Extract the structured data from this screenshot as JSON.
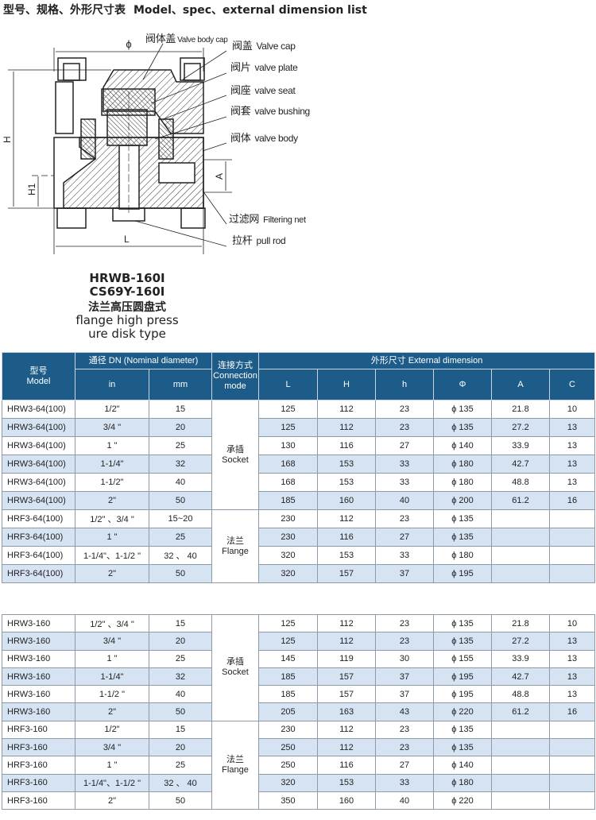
{
  "title": {
    "cn": "型号、规格、外形尺寸表",
    "en": "Model、spec、external dimension list"
  },
  "drawing": {
    "dim_labels": {
      "phi": "ϕ",
      "H": "H",
      "H1": "H1",
      "L": "L",
      "A": "A"
    },
    "parts": [
      {
        "cn": "阀体盖",
        "en": "Valve body cap"
      },
      {
        "cn": "阀盖",
        "en": "Valve cap"
      },
      {
        "cn": "阀片",
        "en": "valve plate"
      },
      {
        "cn": "阀座",
        "en": "valve seat"
      },
      {
        "cn": "阀套",
        "en": "valve bushing"
      },
      {
        "cn": "阀体",
        "en": "valve body"
      },
      {
        "cn": "过滤网",
        "en": "Filtering net"
      },
      {
        "cn": "拉杆",
        "en": "pull rod"
      }
    ],
    "caption": {
      "model1": "HRWB-160I",
      "model2": "CS69Y-160I",
      "cn": "法兰高压圆盘式",
      "en1": "flange high press",
      "en2": "ure disk type"
    }
  },
  "table_header": {
    "model": {
      "cn": "型号",
      "en": "Model"
    },
    "dn": "通径 DN  (Nominal diameter)",
    "in": "in",
    "mm": "mm",
    "conn": {
      "cn": "连接方式",
      "en1": "Connection",
      "en2": "mode"
    },
    "ext": "外形尺寸 External dimension",
    "cols": [
      "L",
      "H",
      "h",
      "Φ",
      "A",
      "C"
    ]
  },
  "colors": {
    "header_bg": "#1d5c89",
    "alt_row": "#d6e3f3"
  },
  "tables": [
    {
      "groups": [
        {
          "conn_cn": "承插",
          "conn_en": "Socket",
          "rows": [
            [
              "HRW3-64(100)",
              "1/2\"",
              "15",
              "125",
              "112",
              "23",
              "ϕ 135",
              "21.8",
              "10"
            ],
            [
              "HRW3-64(100)",
              "3/4 \"",
              "20",
              "125",
              "112",
              "23",
              "ϕ 135",
              "27.2",
              "13"
            ],
            [
              "HRW3-64(100)",
              "1 \"",
              "25",
              "130",
              "116",
              "27",
              "ϕ 140",
              "33.9",
              "13"
            ],
            [
              "HRW3-64(100)",
              "1-1/4\"",
              "32",
              "168",
              "153",
              "33",
              "ϕ 180",
              "42.7",
              "13"
            ],
            [
              "HRW3-64(100)",
              "1-1/2\"",
              "40",
              "168",
              "153",
              "33",
              "ϕ 180",
              "48.8",
              "13"
            ],
            [
              "HRW3-64(100)",
              "2\"",
              "50",
              "185",
              "160",
              "40",
              "ϕ 200",
              "61.2",
              "16"
            ]
          ]
        },
        {
          "conn_cn": "法兰",
          "conn_en": "Flange",
          "rows": [
            [
              "HRF3-64(100)",
              "1/2\" 、3/4 \"",
              "15~20",
              "230",
              "112",
              "23",
              "ϕ 135",
              "",
              ""
            ],
            [
              "HRF3-64(100)",
              "1 \"",
              "25",
              "230",
              "116",
              "27",
              "ϕ 135",
              "",
              ""
            ],
            [
              "HRF3-64(100)",
              "1-1/4\"、1-1/2 \"",
              "32 、 40",
              "320",
              "153",
              "33",
              "ϕ 180",
              "",
              ""
            ],
            [
              "HRF3-64(100)",
              "2\"",
              "50",
              "320",
              "157",
              "37",
              "ϕ 195",
              "",
              ""
            ]
          ]
        }
      ]
    },
    {
      "groups": [
        {
          "conn_cn": "承插",
          "conn_en": "Socket",
          "rows": [
            [
              "HRW3-160",
              "1/2\" 、3/4 \"",
              "15",
              "125",
              "112",
              "23",
              "ϕ 135",
              "21.8",
              "10"
            ],
            [
              "HRW3-160",
              "3/4 \"",
              "20",
              "125",
              "112",
              "23",
              "ϕ 135",
              "27.2",
              "13"
            ],
            [
              "HRW3-160",
              "1 \"",
              "25",
              "145",
              "119",
              "30",
              "ϕ 155",
              "33.9",
              "13"
            ],
            [
              "HRW3-160",
              "1-1/4\"",
              "32",
              "185",
              "157",
              "37",
              "ϕ 195",
              "42.7",
              "13"
            ],
            [
              "HRW3-160",
              "1-1/2 \"",
              "40",
              "185",
              "157",
              "37",
              "ϕ 195",
              "48.8",
              "13"
            ],
            [
              "HRW3-160",
              "2\"",
              "50",
              "205",
              "163",
              "43",
              "ϕ 220",
              "61.2",
              "16"
            ]
          ]
        },
        {
          "conn_cn": "法兰",
          "conn_en": "Flange",
          "rows": [
            [
              "HRF3-160",
              "1/2\"",
              "15",
              "230",
              "112",
              "23",
              "ϕ 135",
              "",
              ""
            ],
            [
              "HRF3-160",
              "3/4 \"",
              "20",
              "250",
              "112",
              "23",
              "ϕ 135",
              "",
              ""
            ],
            [
              "HRF3-160",
              "1 \"",
              "25",
              "250",
              "116",
              "27",
              "ϕ 140",
              "",
              ""
            ],
            [
              "HRF3-160",
              "1-1/4\"、1-1/2 \"",
              "32 、 40",
              "320",
              "153",
              "33",
              "ϕ 180",
              "",
              ""
            ],
            [
              "HRF3-160",
              "2\"",
              "50",
              "350",
              "160",
              "40",
              "ϕ 220",
              "",
              ""
            ]
          ]
        }
      ]
    }
  ]
}
